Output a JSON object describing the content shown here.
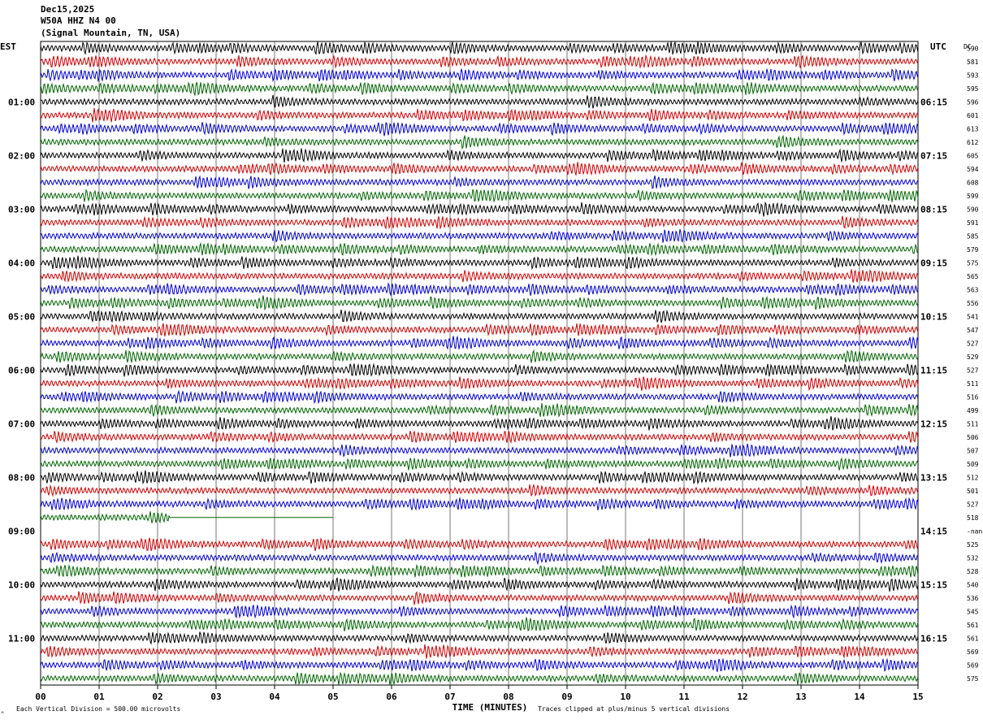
{
  "header": {
    "date": "Dec15,2025",
    "station": "W50A HHZ N4 00",
    "location": "(Signal Mountain, TN, USA)"
  },
  "left_zone_label": "EST",
  "right_zone_label": "UTC",
  "dc_label": "DC",
  "footer": {
    "scale_note": "Each Vertical Division =  500.00 microvolts",
    "clip_note": "Traces clipped at plus/minus 5 vertical divisions",
    "corner_mark": "^"
  },
  "chart_data": {
    "type": "line",
    "xlabel": "TIME (MINUTES)",
    "x_ticks": [
      "00",
      "01",
      "02",
      "03",
      "04",
      "05",
      "06",
      "07",
      "08",
      "09",
      "10",
      "11",
      "12",
      "13",
      "14",
      "15"
    ],
    "xlim": [
      0,
      15
    ],
    "left_hour_labels": [
      "01:00",
      "02:00",
      "03:00",
      "04:00",
      "05:00",
      "06:00",
      "07:00",
      "08:00",
      "09:00",
      "10:00",
      "11:00"
    ],
    "right_hour_labels": [
      "06:15",
      "07:15",
      "08:15",
      "09:15",
      "10:15",
      "11:15",
      "12:15",
      "13:15",
      "14:15",
      "15:15",
      "16:15"
    ],
    "trace_colors": [
      "#000000",
      "#cc0000",
      "#0000cc",
      "#006600"
    ],
    "dc_offsets": [
      "590",
      "581",
      "593",
      "595",
      "596",
      "601",
      "613",
      "612",
      "605",
      "594",
      "608",
      "599",
      "590",
      "591",
      "585",
      "579",
      "575",
      "565",
      "563",
      "556",
      "541",
      "547",
      "527",
      "529",
      "527",
      "511",
      "516",
      "499",
      "511",
      "506",
      "507",
      "509",
      "512",
      "501",
      "527",
      "518",
      "-nan",
      "525",
      "532",
      "528",
      "540",
      "536",
      "545",
      "561",
      "561",
      "569",
      "569",
      "575"
    ],
    "empty_trace_index": 36,
    "partial_trace": {
      "index": 35,
      "end_minute": 5.0,
      "active_until_minute": 2.2
    }
  }
}
